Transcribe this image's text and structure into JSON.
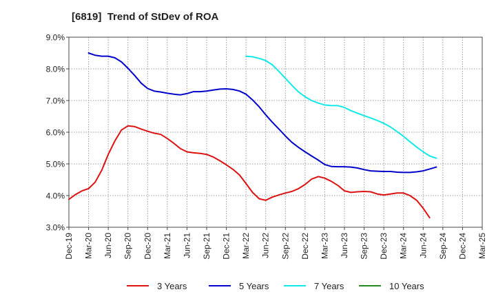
{
  "chart_data": {
    "type": "line",
    "title": "[6819]  Trend of StDev of ROA",
    "xlabel": "",
    "ylabel": "",
    "ylim": [
      3.0,
      9.0
    ],
    "yticks": [
      "3.0%",
      "4.0%",
      "5.0%",
      "6.0%",
      "7.0%",
      "8.0%",
      "9.0%"
    ],
    "categories": [
      "Dec-19",
      "Mar-20",
      "Jun-20",
      "Sep-20",
      "Dec-20",
      "Mar-21",
      "Jun-21",
      "Sep-21",
      "Dec-21",
      "Mar-22",
      "Jun-22",
      "Sep-22",
      "Dec-22",
      "Mar-23",
      "Jun-23",
      "Sep-23",
      "Dec-23",
      "Mar-24",
      "Jun-24",
      "Sep-24",
      "Dec-24",
      "Mar-25"
    ],
    "grid": true,
    "legend_position": "bottom",
    "series": [
      {
        "name": "3 Years",
        "color": "#dd1111",
        "points": [
          [
            0,
            3.88
          ],
          [
            0.33,
            4.03
          ],
          [
            0.67,
            4.15
          ],
          [
            1,
            4.22
          ],
          [
            1.33,
            4.42
          ],
          [
            1.67,
            4.8
          ],
          [
            2,
            5.3
          ],
          [
            2.33,
            5.72
          ],
          [
            2.67,
            6.07
          ],
          [
            3,
            6.2
          ],
          [
            3.33,
            6.18
          ],
          [
            3.67,
            6.1
          ],
          [
            4,
            6.03
          ],
          [
            4.33,
            5.97
          ],
          [
            4.67,
            5.93
          ],
          [
            5,
            5.8
          ],
          [
            5.33,
            5.65
          ],
          [
            5.67,
            5.48
          ],
          [
            6,
            5.38
          ],
          [
            6.33,
            5.35
          ],
          [
            6.67,
            5.33
          ],
          [
            7,
            5.3
          ],
          [
            7.33,
            5.22
          ],
          [
            7.67,
            5.1
          ],
          [
            8,
            4.97
          ],
          [
            8.33,
            4.83
          ],
          [
            8.67,
            4.65
          ],
          [
            9,
            4.38
          ],
          [
            9.33,
            4.1
          ],
          [
            9.67,
            3.9
          ],
          [
            10,
            3.85
          ],
          [
            10.33,
            3.95
          ],
          [
            10.67,
            4.02
          ],
          [
            11,
            4.08
          ],
          [
            11.33,
            4.13
          ],
          [
            11.67,
            4.22
          ],
          [
            12,
            4.35
          ],
          [
            12.33,
            4.52
          ],
          [
            12.67,
            4.6
          ],
          [
            13,
            4.55
          ],
          [
            13.33,
            4.45
          ],
          [
            13.67,
            4.32
          ],
          [
            14,
            4.15
          ],
          [
            14.33,
            4.1
          ],
          [
            14.67,
            4.12
          ],
          [
            15,
            4.13
          ],
          [
            15.33,
            4.12
          ],
          [
            15.67,
            4.05
          ],
          [
            16,
            4.02
          ],
          [
            16.33,
            4.05
          ],
          [
            16.67,
            4.08
          ],
          [
            17,
            4.08
          ],
          [
            17.33,
            4.0
          ],
          [
            17.67,
            3.85
          ],
          [
            18,
            3.6
          ],
          [
            18.33,
            3.3
          ]
        ]
      },
      {
        "name": "5 Years",
        "color": "#0000cc",
        "points": [
          [
            1,
            8.5
          ],
          [
            1.33,
            8.43
          ],
          [
            1.67,
            8.4
          ],
          [
            2,
            8.4
          ],
          [
            2.33,
            8.35
          ],
          [
            2.67,
            8.22
          ],
          [
            3,
            8.02
          ],
          [
            3.33,
            7.8
          ],
          [
            3.67,
            7.55
          ],
          [
            4,
            7.38
          ],
          [
            4.33,
            7.3
          ],
          [
            4.67,
            7.27
          ],
          [
            5,
            7.23
          ],
          [
            5.33,
            7.2
          ],
          [
            5.67,
            7.18
          ],
          [
            6,
            7.22
          ],
          [
            6.33,
            7.28
          ],
          [
            6.67,
            7.28
          ],
          [
            7,
            7.3
          ],
          [
            7.33,
            7.33
          ],
          [
            7.67,
            7.36
          ],
          [
            8,
            7.37
          ],
          [
            8.33,
            7.35
          ],
          [
            8.67,
            7.3
          ],
          [
            9,
            7.2
          ],
          [
            9.33,
            7.02
          ],
          [
            9.67,
            6.8
          ],
          [
            10,
            6.55
          ],
          [
            10.33,
            6.32
          ],
          [
            10.67,
            6.1
          ],
          [
            11,
            5.88
          ],
          [
            11.33,
            5.68
          ],
          [
            11.67,
            5.52
          ],
          [
            12,
            5.38
          ],
          [
            12.33,
            5.25
          ],
          [
            12.67,
            5.12
          ],
          [
            13,
            4.98
          ],
          [
            13.33,
            4.92
          ],
          [
            13.67,
            4.91
          ],
          [
            14,
            4.91
          ],
          [
            14.33,
            4.9
          ],
          [
            14.67,
            4.87
          ],
          [
            15,
            4.82
          ],
          [
            15.33,
            4.78
          ],
          [
            15.67,
            4.77
          ],
          [
            16,
            4.76
          ],
          [
            16.33,
            4.76
          ],
          [
            16.67,
            4.74
          ],
          [
            17,
            4.73
          ],
          [
            17.33,
            4.73
          ],
          [
            17.67,
            4.75
          ],
          [
            18,
            4.78
          ],
          [
            18.33,
            4.84
          ],
          [
            18.67,
            4.9
          ]
        ]
      },
      {
        "name": "7 Years",
        "color": "#11e8e8",
        "points": [
          [
            9,
            8.4
          ],
          [
            9.33,
            8.38
          ],
          [
            9.67,
            8.33
          ],
          [
            10,
            8.26
          ],
          [
            10.33,
            8.13
          ],
          [
            10.67,
            7.92
          ],
          [
            11,
            7.7
          ],
          [
            11.33,
            7.48
          ],
          [
            11.67,
            7.27
          ],
          [
            12,
            7.12
          ],
          [
            12.33,
            7.0
          ],
          [
            12.67,
            6.92
          ],
          [
            13,
            6.86
          ],
          [
            13.33,
            6.84
          ],
          [
            13.67,
            6.84
          ],
          [
            14,
            6.78
          ],
          [
            14.33,
            6.68
          ],
          [
            14.67,
            6.6
          ],
          [
            15,
            6.52
          ],
          [
            15.33,
            6.45
          ],
          [
            15.67,
            6.37
          ],
          [
            16,
            6.28
          ],
          [
            16.33,
            6.17
          ],
          [
            16.67,
            6.02
          ],
          [
            17,
            5.87
          ],
          [
            17.33,
            5.7
          ],
          [
            17.67,
            5.53
          ],
          [
            18,
            5.38
          ],
          [
            18.33,
            5.25
          ],
          [
            18.67,
            5.18
          ]
        ]
      },
      {
        "name": "10 Years",
        "color": "#228822",
        "points": []
      }
    ]
  }
}
